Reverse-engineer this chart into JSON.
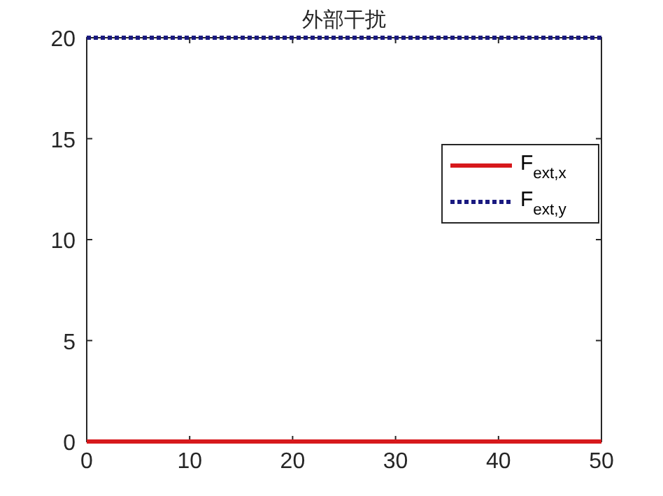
{
  "chart_data": {
    "type": "line",
    "title": "外部干扰",
    "x": [
      0,
      50
    ],
    "series": [
      {
        "name": "F$_{ext,x}$",
        "color": "#d7191c",
        "values": [
          0,
          0
        ],
        "line_style": "solid"
      },
      {
        "name": "F$_{ext,y}$",
        "color": "#1a1a80",
        "values": [
          20,
          20
        ],
        "line_style": "dotted"
      }
    ],
    "xlim": [
      0,
      50
    ],
    "xticks": [
      0,
      10,
      20,
      30,
      40,
      50
    ],
    "ylim": [
      0,
      20
    ],
    "yticks": [
      0,
      5,
      10,
      15,
      20
    ],
    "grid": false,
    "legend": "right",
    "marker": "none"
  }
}
